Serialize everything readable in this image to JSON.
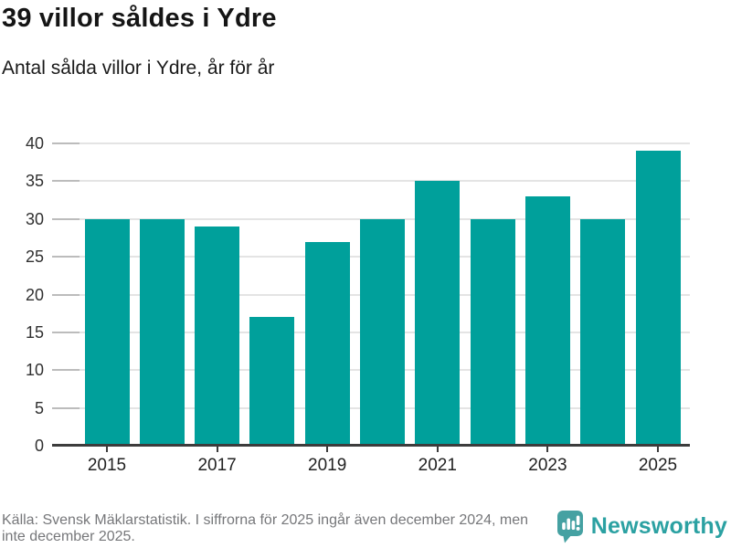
{
  "header": {
    "title": "39 villor såldes i Ydre",
    "subtitle": "Antal sålda villor i Ydre, år för år"
  },
  "chart_data": {
    "type": "bar",
    "title": "39 villor såldes i Ydre",
    "subtitle": "Antal sålda villor i Ydre, år för år",
    "categories": [
      2015,
      2016,
      2017,
      2018,
      2019,
      2020,
      2021,
      2022,
      2023,
      2024,
      2025
    ],
    "values": [
      30,
      30,
      29,
      17,
      27,
      30,
      35,
      30,
      33,
      30,
      39
    ],
    "xlabel": "",
    "ylabel": "",
    "ylim": [
      0,
      40
    ],
    "yticks": [
      0,
      5,
      10,
      15,
      20,
      25,
      30,
      35,
      40
    ],
    "xtick_labels": [
      "2015",
      "2017",
      "2019",
      "2021",
      "2023",
      "2025"
    ],
    "grid": "horizontal",
    "legend": "none",
    "bar_color": "#00a09b",
    "gridline_color": "#e4e4e4",
    "axis_line_color": "#3c3c3c"
  },
  "footer": {
    "source_line1": "Källa: Svensk Mäklarstatistik. I siffrorna för 2025 ingår även december 2024, men",
    "source_line2": "inte december 2025.",
    "logo_text": "Newsworthy",
    "logo_icon": "bar-chart-speech-bubble-icon",
    "brand_color": "#2ba1a2"
  }
}
